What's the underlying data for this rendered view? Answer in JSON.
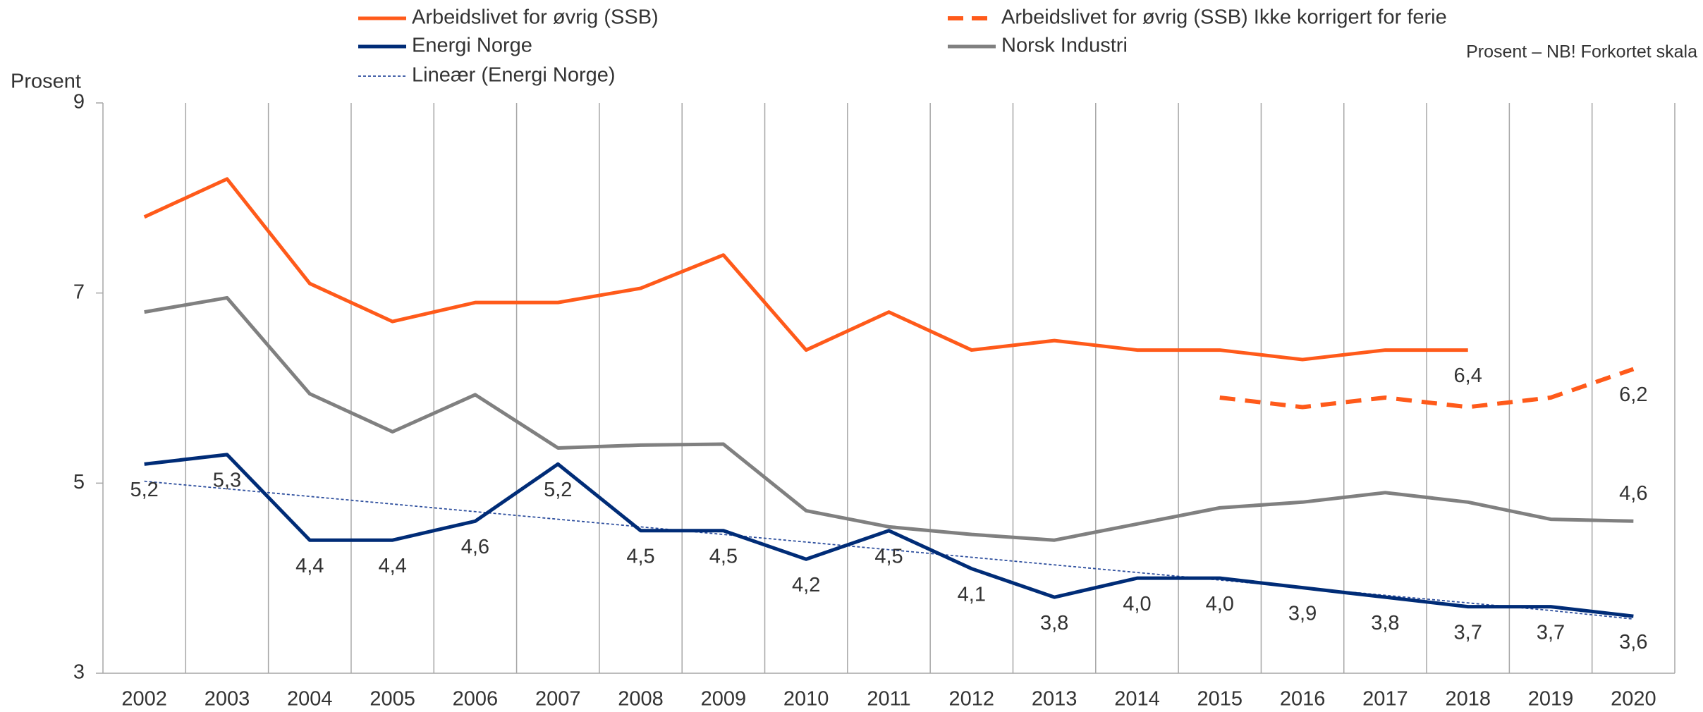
{
  "chart_data": {
    "type": "line",
    "y_label": "Prosent",
    "annotation": "Prosent – NB! Forkortet skala",
    "categories": [
      "2002",
      "2003",
      "2004",
      "2005",
      "2006",
      "2007",
      "2008",
      "2009",
      "2010",
      "2011",
      "2012",
      "2013",
      "2014",
      "2015",
      "2016",
      "2017",
      "2018",
      "2019",
      "2020"
    ],
    "ylim": [
      3,
      9
    ],
    "yticks": [
      3,
      5,
      7,
      9
    ],
    "grid": true,
    "series": [
      {
        "name": "Arbeidslivet for øvrig (SSB)",
        "color": "#ff5a1a",
        "style": "solid",
        "values": [
          7.8,
          8.2,
          7.1,
          6.7,
          6.9,
          6.9,
          7.05,
          7.4,
          6.4,
          6.8,
          6.4,
          6.5,
          6.4,
          6.4,
          6.3,
          6.4,
          6.4,
          null,
          null
        ],
        "value_labels": [
          null,
          null,
          null,
          null,
          null,
          null,
          null,
          null,
          null,
          null,
          null,
          null,
          null,
          null,
          null,
          null,
          "6,4",
          null,
          null
        ]
      },
      {
        "name": "Arbeidslivet for øvrig (SSB) Ikke korrigert for ferie",
        "color": "#ff5a1a",
        "style": "dashed",
        "values": [
          null,
          null,
          null,
          null,
          null,
          null,
          null,
          null,
          null,
          null,
          null,
          null,
          null,
          5.9,
          5.8,
          5.9,
          5.8,
          5.9,
          6.2
        ],
        "value_labels": [
          null,
          null,
          null,
          null,
          null,
          null,
          null,
          null,
          null,
          null,
          null,
          null,
          null,
          null,
          null,
          null,
          null,
          null,
          "6,2"
        ]
      },
      {
        "name": "Energi Norge",
        "color": "#002c77",
        "style": "solid",
        "values": [
          5.2,
          5.3,
          4.4,
          4.4,
          4.6,
          5.2,
          4.5,
          4.5,
          4.2,
          4.5,
          4.1,
          3.8,
          4.0,
          4.0,
          3.9,
          3.8,
          3.7,
          3.7,
          3.6
        ],
        "value_labels": [
          "5,2",
          "5,3",
          "4,4",
          "4,4",
          "4,6",
          "5,2",
          "4,5",
          "4,5",
          "4,2",
          "4,5",
          "4,1",
          "3,8",
          "4,0",
          "4,0",
          "3,9",
          "3,8",
          "3,7",
          "3,7",
          "3,6"
        ]
      },
      {
        "name": "Norsk Industri",
        "color": "#808080",
        "style": "solid",
        "values": [
          6.8,
          6.95,
          5.94,
          5.54,
          5.93,
          5.37,
          5.4,
          5.41,
          4.71,
          4.54,
          4.46,
          4.4,
          4.57,
          4.74,
          4.8,
          4.9,
          4.8,
          4.62,
          4.6
        ],
        "value_labels": [
          null,
          null,
          null,
          null,
          null,
          null,
          null,
          null,
          null,
          null,
          null,
          null,
          null,
          null,
          null,
          null,
          null,
          null,
          "4,6"
        ]
      },
      {
        "name": "Lineær (Energi Norge)",
        "color": "#2e4f9e",
        "style": "dotted",
        "values": [
          5.02,
          4.94,
          4.86,
          4.78,
          4.7,
          4.62,
          4.54,
          4.46,
          4.38,
          4.3,
          4.22,
          4.14,
          4.06,
          3.98,
          3.9,
          3.82,
          3.74,
          3.66,
          3.57
        ]
      }
    ]
  }
}
